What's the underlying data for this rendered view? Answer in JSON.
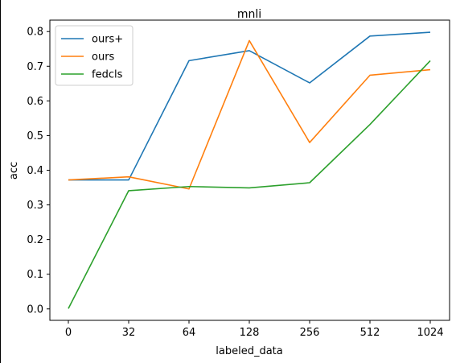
{
  "chart_data": {
    "type": "line",
    "title": "mnli",
    "xlabel": "labeled_data",
    "ylabel": "acc",
    "categories": [
      "0",
      "32",
      "64",
      "128",
      "256",
      "512",
      "1024"
    ],
    "ylim": [
      -0.033,
      0.833
    ],
    "yticks": [
      "0.0",
      "0.1",
      "0.2",
      "0.3",
      "0.4",
      "0.5",
      "0.6",
      "0.7",
      "0.8"
    ],
    "grid": false,
    "legend_position": "upper-left",
    "series": [
      {
        "name": "ours+",
        "color": "#1f77b4",
        "values": [
          0.372,
          0.372,
          0.716,
          0.745,
          0.652,
          0.787,
          0.798
        ]
      },
      {
        "name": "ours",
        "color": "#ff7f0e",
        "values": [
          0.372,
          0.381,
          0.346,
          0.774,
          0.48,
          0.674,
          0.69
        ]
      },
      {
        "name": "fedcls",
        "color": "#2ca02c",
        "values": [
          0.001,
          0.341,
          0.353,
          0.349,
          0.364,
          0.532,
          0.716
        ]
      }
    ]
  }
}
